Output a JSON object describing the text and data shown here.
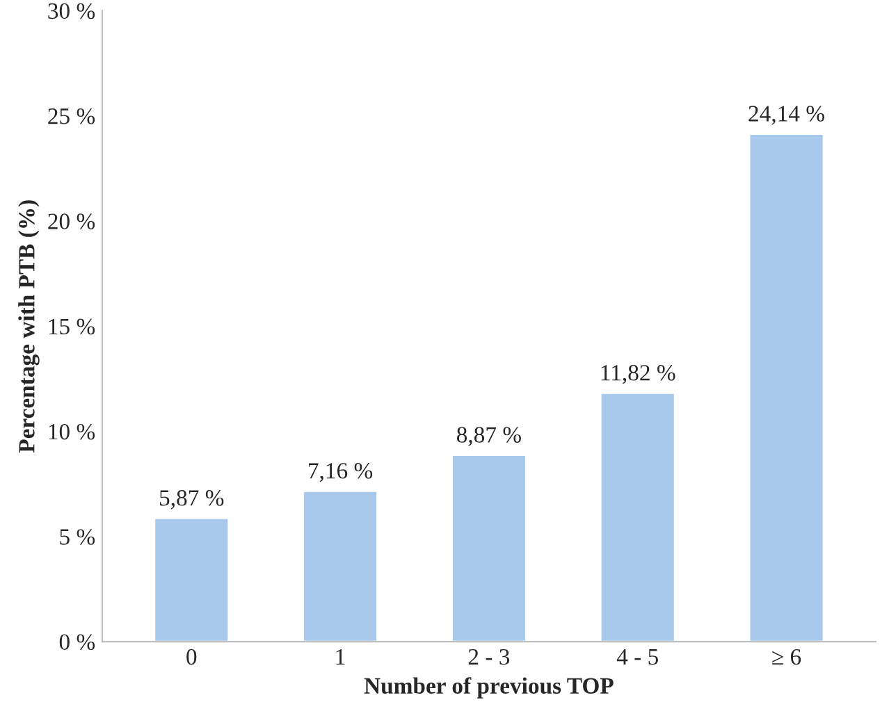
{
  "chart_data": {
    "type": "bar",
    "xlabel": "Number of previous TOP",
    "ylabel": "Percentage with PTB (%)",
    "categories": [
      "0",
      "1",
      "2 - 3",
      "4 - 5",
      "≥ 6"
    ],
    "values": [
      5.87,
      7.16,
      8.87,
      11.82,
      24.14
    ],
    "value_labels": [
      "5,87 %",
      "7,16 %",
      "8,87 %",
      "11,82 %",
      "24,14 %"
    ],
    "color": "#a9c9ec",
    "ylim": [
      0,
      30
    ],
    "yticks": [
      {
        "value": 0,
        "label": "0 %"
      },
      {
        "value": 5,
        "label": "5 %"
      },
      {
        "value": 10,
        "label": "10 %"
      },
      {
        "value": 15,
        "label": "15 %"
      },
      {
        "value": 20,
        "label": "20 %"
      },
      {
        "value": 25,
        "label": "25 %"
      },
      {
        "value": 30,
        "label": "30 %"
      }
    ],
    "grid": false
  }
}
